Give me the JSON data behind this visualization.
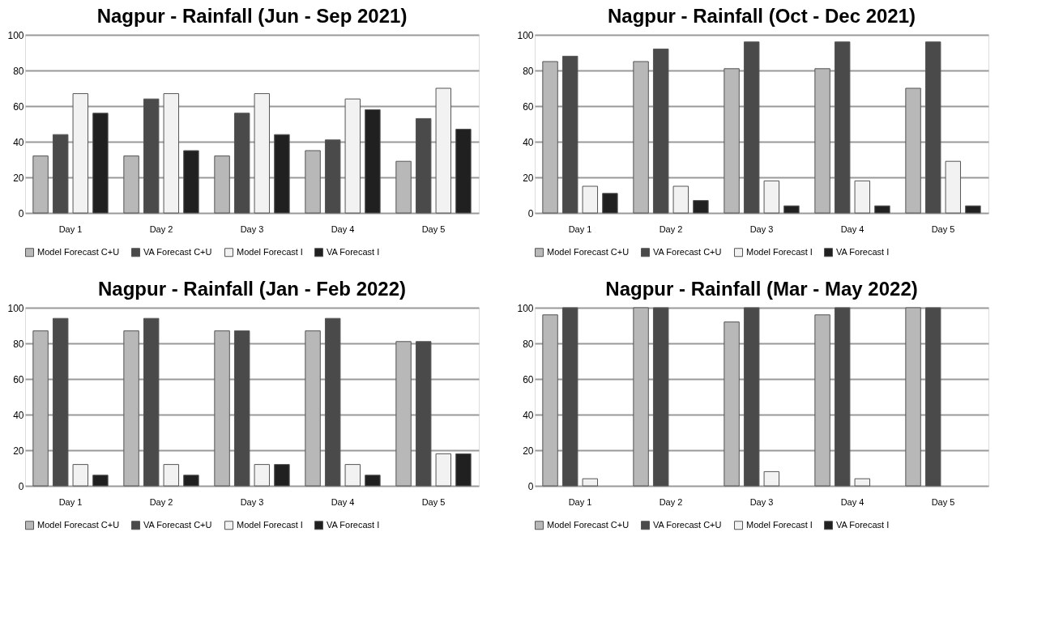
{
  "chart_data": [
    {
      "type": "bar",
      "title": "Nagpur - Rainfall (Jun - Sep 2021)",
      "categories": [
        "Day 1",
        "Day 2",
        "Day 3",
        "Day 4",
        "Day 5"
      ],
      "ylim": [
        0,
        100
      ],
      "yticks": [
        0,
        20,
        40,
        60,
        80,
        100
      ],
      "grid": "y",
      "legend": "bottom",
      "series": [
        {
          "name": "Model Forecast C+U",
          "color": "#b8b8b8",
          "values": [
            32,
            32,
            32,
            35,
            29
          ]
        },
        {
          "name": "VA Forecast C+U",
          "color": "#4a4a4a",
          "values": [
            44,
            64,
            56,
            41,
            53
          ]
        },
        {
          "name": "Model Forecast I",
          "color": "#f2f2f2",
          "values": [
            67,
            67,
            67,
            64,
            70
          ]
        },
        {
          "name": "VA Forecast I",
          "color": "#202020",
          "values": [
            56,
            35,
            44,
            58,
            47
          ]
        }
      ]
    },
    {
      "type": "bar",
      "title": "Nagpur - Rainfall (Oct - Dec 2021)",
      "categories": [
        "Day 1",
        "Day 2",
        "Day 3",
        "Day 4",
        "Day 5"
      ],
      "ylim": [
        0,
        100
      ],
      "yticks": [
        0,
        20,
        40,
        60,
        80,
        100
      ],
      "grid": "y",
      "legend": "bottom",
      "series": [
        {
          "name": "Model Forecast C+U",
          "color": "#b8b8b8",
          "values": [
            85,
            85,
            81,
            81,
            70
          ]
        },
        {
          "name": "VA Forecast C+U",
          "color": "#4a4a4a",
          "values": [
            88,
            92,
            96,
            96,
            96
          ]
        },
        {
          "name": "Model Forecast I",
          "color": "#f2f2f2",
          "values": [
            15,
            15,
            18,
            18,
            29
          ]
        },
        {
          "name": "VA Forecast I",
          "color": "#202020",
          "values": [
            11,
            7,
            4,
            4,
            4
          ]
        }
      ]
    },
    {
      "type": "bar",
      "title": "Nagpur - Rainfall (Jan - Feb 2022)",
      "categories": [
        "Day 1",
        "Day 2",
        "Day 3",
        "Day 4",
        "Day 5"
      ],
      "ylim": [
        0,
        100
      ],
      "yticks": [
        0,
        20,
        40,
        60,
        80,
        100
      ],
      "grid": "y",
      "legend": "bottom",
      "series": [
        {
          "name": "Model Forecast C+U",
          "color": "#b8b8b8",
          "values": [
            87,
            87,
            87,
            87,
            81
          ]
        },
        {
          "name": "VA Forecast C+U",
          "color": "#4a4a4a",
          "values": [
            94,
            94,
            87,
            94,
            81
          ]
        },
        {
          "name": "Model Forecast I",
          "color": "#f2f2f2",
          "values": [
            12,
            12,
            12,
            12,
            18
          ]
        },
        {
          "name": "VA Forecast I",
          "color": "#202020",
          "values": [
            6,
            6,
            12,
            6,
            18
          ]
        }
      ]
    },
    {
      "type": "bar",
      "title": "Nagpur - Rainfall (Mar - May 2022)",
      "categories": [
        "Day 1",
        "Day 2",
        "Day 3",
        "Day 4",
        "Day 5"
      ],
      "ylim": [
        0,
        100
      ],
      "yticks": [
        0,
        20,
        40,
        60,
        80,
        100
      ],
      "grid": "y",
      "legend": "bottom",
      "series": [
        {
          "name": "Model Forecast C+U",
          "color": "#b8b8b8",
          "values": [
            96,
            100,
            92,
            96,
            100
          ]
        },
        {
          "name": "VA Forecast C+U",
          "color": "#4a4a4a",
          "values": [
            100,
            100,
            100,
            100,
            100
          ]
        },
        {
          "name": "Model Forecast I",
          "color": "#f2f2f2",
          "values": [
            4,
            0,
            8,
            4,
            0
          ]
        },
        {
          "name": "VA Forecast I",
          "color": "#202020",
          "values": [
            0,
            0,
            0,
            0,
            0
          ]
        }
      ]
    }
  ]
}
